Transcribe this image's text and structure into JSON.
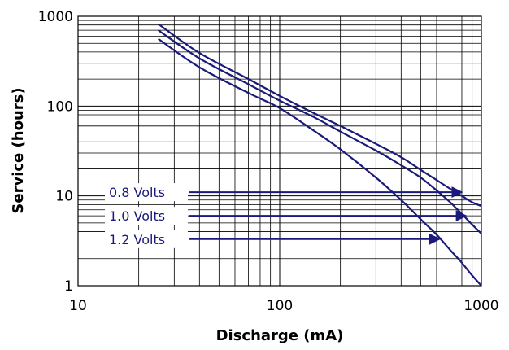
{
  "chart_data": {
    "type": "line",
    "title": "",
    "xlabel": "Discharge (mA)",
    "ylabel": "Service (hours)",
    "x_scale": "log",
    "y_scale": "log",
    "xlim": [
      10,
      1000
    ],
    "ylim": [
      1,
      1000
    ],
    "x_ticks": [
      "10",
      "100",
      "1000"
    ],
    "y_ticks": [
      "1",
      "10",
      "100",
      "1000"
    ],
    "grid": true,
    "line_color": "#1a1a7a",
    "series": [
      {
        "name": "0.8 Volts",
        "points": [
          [
            25,
            820
          ],
          [
            40,
            390
          ],
          [
            70,
            200
          ],
          [
            100,
            130
          ],
          [
            150,
            82
          ],
          [
            200,
            60
          ],
          [
            300,
            38
          ],
          [
            400,
            27
          ],
          [
            500,
            19.5
          ],
          [
            600,
            15
          ],
          [
            700,
            12
          ],
          [
            800,
            10
          ],
          [
            900,
            8.5
          ],
          [
            1000,
            7.7
          ]
        ]
      },
      {
        "name": "1.0 Volts",
        "points": [
          [
            25,
            700
          ],
          [
            40,
            340
          ],
          [
            70,
            175
          ],
          [
            100,
            115
          ],
          [
            150,
            74
          ],
          [
            200,
            52
          ],
          [
            300,
            32
          ],
          [
            400,
            22
          ],
          [
            500,
            16
          ],
          [
            600,
            11.5
          ],
          [
            700,
            8.5
          ],
          [
            800,
            6.3
          ],
          [
            900,
            4.8
          ],
          [
            1000,
            3.8
          ]
        ]
      },
      {
        "name": "1.2 Volts",
        "points": [
          [
            25,
            560
          ],
          [
            40,
            270
          ],
          [
            70,
            140
          ],
          [
            100,
            95
          ],
          [
            150,
            52
          ],
          [
            200,
            33
          ],
          [
            300,
            16
          ],
          [
            400,
            9
          ],
          [
            500,
            5.5
          ],
          [
            600,
            3.7
          ],
          [
            700,
            2.5
          ],
          [
            800,
            1.8
          ],
          [
            900,
            1.3
          ],
          [
            1000,
            1.0
          ]
        ]
      }
    ],
    "annotations": [
      {
        "series": "0.8 Volts",
        "arrow_to": [
          800,
          11
        ]
      },
      {
        "series": "1.0 Volts",
        "arrow_to": [
          840,
          6
        ]
      },
      {
        "series": "1.2 Volts",
        "arrow_to": [
          620,
          3.3
        ]
      }
    ]
  }
}
